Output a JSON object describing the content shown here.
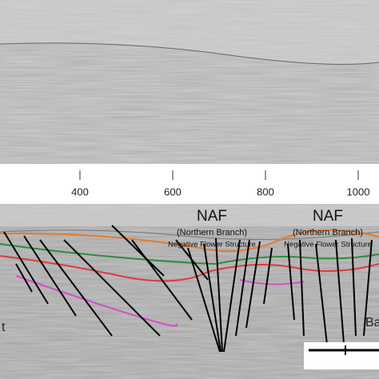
{
  "axis": {
    "ticks": [
      400,
      600,
      800,
      1000
    ]
  },
  "annotations": [
    {
      "title": "NAF",
      "subtitle": "(Northern Branch)",
      "note": "Negative Flower Structure"
    },
    {
      "title": "NAF",
      "subtitle": "(Northern Branch)",
      "note": "Negative Flower Structure"
    }
  ],
  "edge_labels": {
    "left": "t",
    "right": "Ba"
  }
}
